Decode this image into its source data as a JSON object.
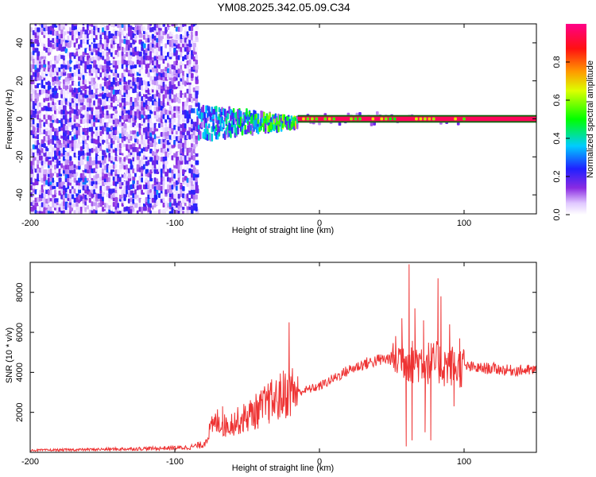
{
  "title": "YM08.2025.342.05.09.C34",
  "chart_data": [
    {
      "type": "heatmap",
      "title": "YM08.2025.342.05.09.C34",
      "xlabel": "Height of straight line (km)",
      "ylabel": "Frequency (Hz)",
      "xlim": [
        -200,
        150
      ],
      "ylim": [
        -50,
        50
      ],
      "xticks": [
        -200,
        -100,
        0,
        100
      ],
      "yticks": [
        -40,
        -20,
        0,
        20,
        40
      ],
      "colorbar": {
        "label": "Normalized spectral amplitude",
        "range": [
          0.0,
          1.0
        ],
        "ticks": [
          0.0,
          0.2,
          0.4,
          0.6,
          0.8
        ],
        "colormap": "rainbow (white→violet→blue→cyan→green→yellow→red→magenta)"
      },
      "regions": [
        {
          "name": "broadband noise",
          "x_range": [
            -200,
            -85
          ],
          "freq_range": [
            -50,
            50
          ],
          "amplitude": [
            0.0,
            0.25
          ]
        },
        {
          "name": "transition blob",
          "x_range": [
            -85,
            -15
          ],
          "freq_range": [
            -15,
            8
          ],
          "amplitude": [
            0.1,
            0.6
          ]
        },
        {
          "name": "dominant tone",
          "x_range": [
            -15,
            150
          ],
          "freq": 0,
          "amplitude": [
            0.8,
            1.0
          ]
        }
      ]
    },
    {
      "type": "line",
      "xlabel": "Height of straight line (km)",
      "ylabel": "SNR (10 * v/v)",
      "xlim": [
        -200,
        150
      ],
      "ylim": [
        0,
        9500
      ],
      "xticks": [
        -200,
        -100,
        0,
        100
      ],
      "yticks": [
        2000,
        4000,
        6000,
        8000
      ],
      "series": [
        {
          "name": "SNR",
          "color": "#ee3333",
          "x": [
            -200,
            -150,
            -110,
            -90,
            -80,
            -75,
            -70,
            -65,
            -60,
            -55,
            -50,
            -45,
            -40,
            -35,
            -30,
            -25,
            -20,
            -15,
            -10,
            -5,
            0,
            10,
            20,
            30,
            40,
            50,
            55,
            58,
            60,
            62,
            65,
            70,
            75,
            80,
            82,
            85,
            90,
            95,
            100,
            110,
            120,
            130,
            140,
            150
          ],
          "values": [
            100,
            150,
            200,
            250,
            400,
            1200,
            1600,
            1300,
            1500,
            1600,
            1800,
            2000,
            2200,
            2500,
            2600,
            2900,
            3100,
            3000,
            3100,
            3200,
            3300,
            3700,
            4100,
            4400,
            4600,
            4700,
            4750,
            4800,
            4700,
            4600,
            4500,
            4600,
            4500,
            4400,
            4500,
            4300,
            4400,
            4200,
            4300,
            4200,
            4200,
            4100,
            4100,
            4100
          ],
          "spikes": [
            {
              "x": -67,
              "value": 2300
            },
            {
              "x": -35,
              "value": 3100
            },
            {
              "x": -27,
              "value": 3600
            },
            {
              "x": -21,
              "value": 6500
            },
            {
              "x": -15,
              "value": 3800
            },
            {
              "x": 57,
              "value": 6700
            },
            {
              "x": 60,
              "value": 300
            },
            {
              "x": 62,
              "value": 9400
            },
            {
              "x": 64,
              "value": 600
            },
            {
              "x": 66,
              "value": 7200
            },
            {
              "x": 72,
              "value": 6600
            },
            {
              "x": 73,
              "value": 1000
            },
            {
              "x": 77,
              "value": 600
            },
            {
              "x": 79,
              "value": 5200
            },
            {
              "x": 82,
              "value": 8700
            },
            {
              "x": 84,
              "value": 7800
            },
            {
              "x": 90,
              "value": 6400
            },
            {
              "x": 93,
              "value": 2300
            },
            {
              "x": 97,
              "value": 5700
            }
          ]
        }
      ]
    }
  ]
}
